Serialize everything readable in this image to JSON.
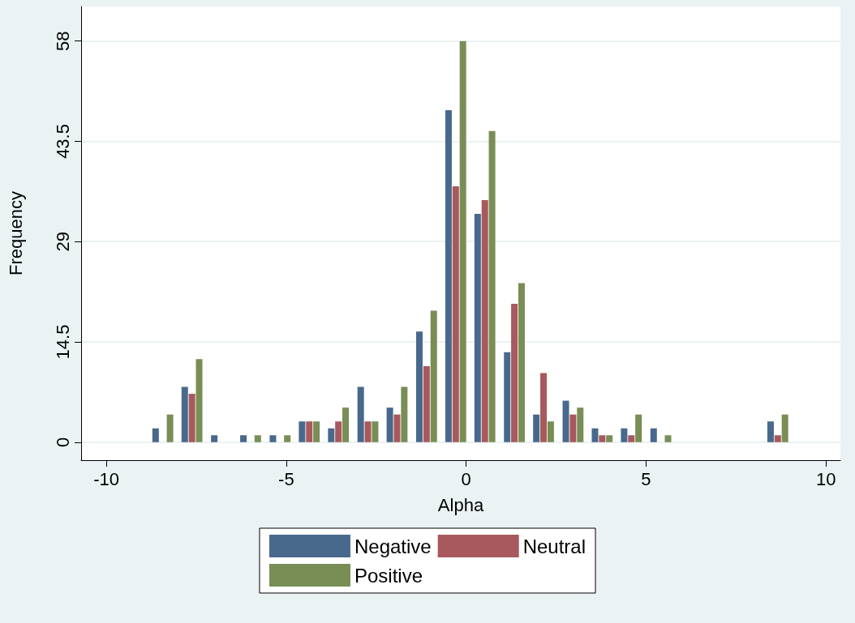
{
  "chart_data": {
    "type": "bar",
    "xlabel": "Alpha",
    "ylabel": "Frequency",
    "xlim": [
      -10.7,
      10.4
    ],
    "xticks": [
      -10,
      -5,
      0,
      5,
      10
    ],
    "ylim": [
      -2.6,
      63
    ],
    "yticks": [
      0,
      14.5,
      29,
      43.5,
      58
    ],
    "grid": "y",
    "legend": "bottom",
    "series": [
      {
        "name": "Negative",
        "color": "#48698c",
        "x": [
          -8.63,
          -7.82,
          -7.0,
          -6.19,
          -5.37,
          -4.56,
          -3.75,
          -2.93,
          -2.12,
          -1.3,
          -0.49,
          0.32,
          1.14,
          1.95,
          2.77,
          3.58,
          4.39,
          5.21,
          8.46
        ],
        "values": [
          2,
          8,
          1,
          1,
          1,
          3,
          2,
          8,
          5,
          16,
          48,
          33,
          13,
          4,
          6,
          2,
          2,
          2,
          3
        ]
      },
      {
        "name": "Neutral",
        "color": "#a8595d",
        "x": [
          -7.62,
          -4.36,
          -3.55,
          -2.73,
          -1.92,
          -1.1,
          -0.29,
          0.52,
          1.34,
          2.15,
          2.97,
          3.78,
          4.59,
          8.66
        ],
        "values": [
          7,
          3,
          3,
          3,
          4,
          11,
          37,
          35,
          20,
          10,
          4,
          1,
          1,
          1
        ]
      },
      {
        "name": "Positive",
        "color": "#788e55",
        "x": [
          -8.23,
          -7.42,
          -5.79,
          -4.97,
          -4.16,
          -3.35,
          -2.53,
          -1.72,
          -0.9,
          -0.09,
          0.72,
          1.54,
          2.35,
          3.17,
          3.98,
          4.79,
          5.61,
          8.86
        ],
        "values": [
          4,
          12,
          1,
          1,
          3,
          5,
          3,
          8,
          19,
          58,
          45,
          23,
          3,
          5,
          1,
          4,
          1,
          4
        ]
      }
    ]
  }
}
